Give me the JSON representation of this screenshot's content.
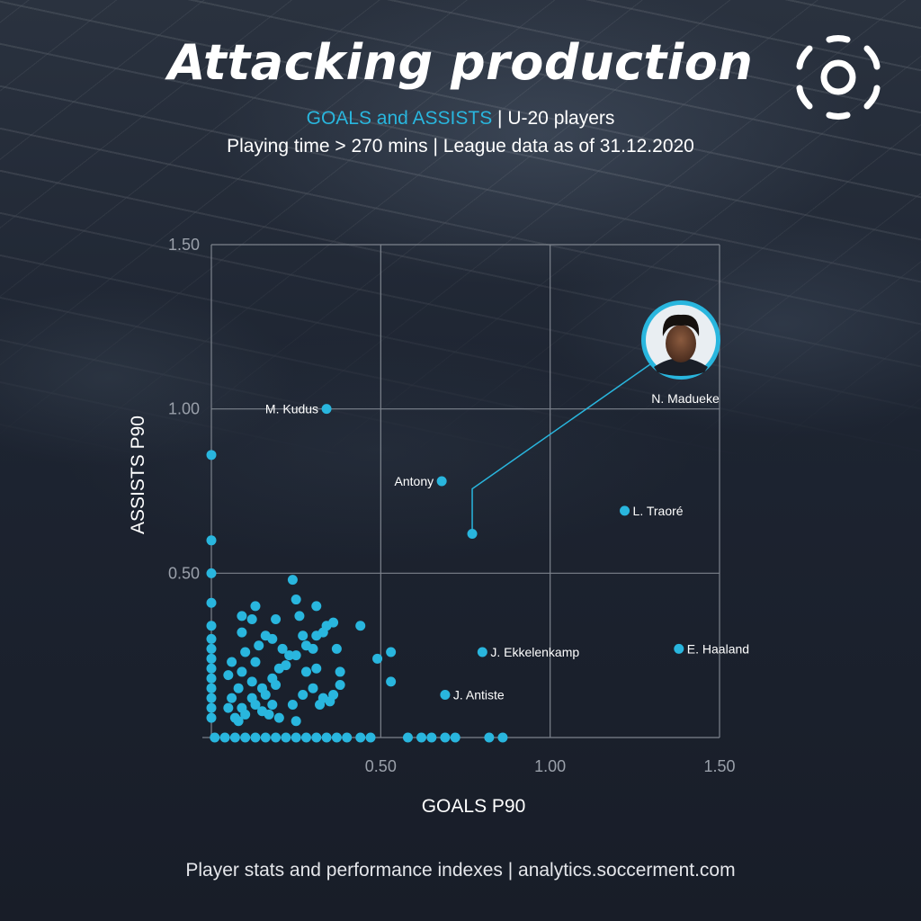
{
  "title": "Attacking production",
  "subtitle_highlight": "GOALS and ASSISTS",
  "subtitle_rest": " | U-20 players",
  "subtitle2": "Playing time > 270 mins | League data as of 31.12.2020",
  "footer": "Player stats and performance indexes  |  analytics.soccerment.com",
  "colors": {
    "accent": "#29b6de",
    "background": "#1c2230",
    "grid": "#7d838d"
  },
  "logo_icon": "soccerment-logo-icon",
  "chart_data": {
    "type": "scatter",
    "xlabel": "GOALS P90",
    "ylabel": "ASSISTS P90",
    "xlim": [
      0,
      1.5
    ],
    "ylim": [
      0,
      1.5
    ],
    "xticks": [
      "0.50",
      "1.00",
      "1.50"
    ],
    "yticks": [
      "0.50",
      "1.00",
      "1.50"
    ],
    "grid": true,
    "labeled_points": [
      {
        "label": "M. Kudus",
        "x": 0.34,
        "y": 1.0,
        "label_side": "left"
      },
      {
        "label": "Antony",
        "x": 0.68,
        "y": 0.78,
        "label_side": "left"
      },
      {
        "label": "L. Traoré",
        "x": 1.22,
        "y": 0.69,
        "label_side": "right"
      },
      {
        "label": "J. Ekkelenkamp",
        "x": 0.8,
        "y": 0.26,
        "label_side": "right"
      },
      {
        "label": "E. Haaland",
        "x": 1.38,
        "y": 0.27,
        "label_side": "right"
      },
      {
        "label": "J. Antiste",
        "x": 0.69,
        "y": 0.13,
        "label_side": "right"
      }
    ],
    "highlight": {
      "label": "N. Madueke",
      "x": 0.77,
      "y": 0.62,
      "icon": "player-photo-icon"
    },
    "points": [
      [
        0.0,
        0.86
      ],
      [
        0.0,
        0.6
      ],
      [
        0.0,
        0.5
      ],
      [
        0.0,
        0.41
      ],
      [
        0.0,
        0.34
      ],
      [
        0.0,
        0.3
      ],
      [
        0.0,
        0.27
      ],
      [
        0.0,
        0.24
      ],
      [
        0.0,
        0.21
      ],
      [
        0.0,
        0.18
      ],
      [
        0.0,
        0.15
      ],
      [
        0.0,
        0.12
      ],
      [
        0.0,
        0.09
      ],
      [
        0.0,
        0.06
      ],
      [
        0.05,
        0.19
      ],
      [
        0.06,
        0.23
      ],
      [
        0.09,
        0.32
      ],
      [
        0.09,
        0.37
      ],
      [
        0.1,
        0.26
      ],
      [
        0.12,
        0.36
      ],
      [
        0.13,
        0.23
      ],
      [
        0.13,
        0.4
      ],
      [
        0.16,
        0.31
      ],
      [
        0.18,
        0.3
      ],
      [
        0.19,
        0.36
      ],
      [
        0.2,
        0.21
      ],
      [
        0.21,
        0.27
      ],
      [
        0.23,
        0.25
      ],
      [
        0.24,
        0.48
      ],
      [
        0.25,
        0.42
      ],
      [
        0.26,
        0.37
      ],
      [
        0.27,
        0.31
      ],
      [
        0.3,
        0.27
      ],
      [
        0.31,
        0.4
      ],
      [
        0.33,
        0.32
      ],
      [
        0.36,
        0.35
      ],
      [
        0.37,
        0.27
      ],
      [
        0.38,
        0.2
      ],
      [
        0.38,
        0.16
      ],
      [
        0.3,
        0.15
      ],
      [
        0.33,
        0.12
      ],
      [
        0.35,
        0.11
      ],
      [
        0.36,
        0.13
      ],
      [
        0.28,
        0.2
      ],
      [
        0.31,
        0.21
      ],
      [
        0.44,
        0.34
      ],
      [
        0.49,
        0.24
      ],
      [
        0.53,
        0.26
      ],
      [
        0.53,
        0.17
      ],
      [
        0.2,
        0.06
      ],
      [
        0.25,
        0.05
      ],
      [
        0.32,
        0.1
      ],
      [
        0.07,
        0.06
      ],
      [
        0.09,
        0.09
      ],
      [
        0.12,
        0.12
      ],
      [
        0.15,
        0.15
      ],
      [
        0.18,
        0.18
      ],
      [
        0.22,
        0.22
      ],
      [
        0.25,
        0.25
      ],
      [
        0.28,
        0.28
      ],
      [
        0.31,
        0.31
      ],
      [
        0.34,
        0.34
      ],
      [
        0.08,
        0.05
      ],
      [
        0.1,
        0.07
      ],
      [
        0.13,
        0.1
      ],
      [
        0.16,
        0.13
      ],
      [
        0.19,
        0.16
      ],
      [
        0.24,
        0.1
      ],
      [
        0.27,
        0.13
      ],
      [
        0.06,
        0.12
      ],
      [
        0.08,
        0.15
      ],
      [
        0.05,
        0.09
      ],
      [
        0.09,
        0.2
      ],
      [
        0.12,
        0.17
      ],
      [
        0.15,
        0.08
      ],
      [
        0.18,
        0.1
      ],
      [
        0.14,
        0.28
      ],
      [
        0.17,
        0.07
      ],
      [
        0.01,
        0.0
      ],
      [
        0.04,
        0.0
      ],
      [
        0.07,
        0.0
      ],
      [
        0.1,
        0.0
      ],
      [
        0.13,
        0.0
      ],
      [
        0.16,
        0.0
      ],
      [
        0.19,
        0.0
      ],
      [
        0.22,
        0.0
      ],
      [
        0.25,
        0.0
      ],
      [
        0.28,
        0.0
      ],
      [
        0.31,
        0.0
      ],
      [
        0.34,
        0.0
      ],
      [
        0.37,
        0.0
      ],
      [
        0.4,
        0.0
      ],
      [
        0.44,
        0.0
      ],
      [
        0.47,
        0.0
      ],
      [
        0.58,
        0.0
      ],
      [
        0.62,
        0.0
      ],
      [
        0.65,
        0.0
      ],
      [
        0.69,
        0.0
      ],
      [
        0.72,
        0.0
      ],
      [
        0.82,
        0.0
      ],
      [
        0.86,
        0.0
      ]
    ]
  }
}
